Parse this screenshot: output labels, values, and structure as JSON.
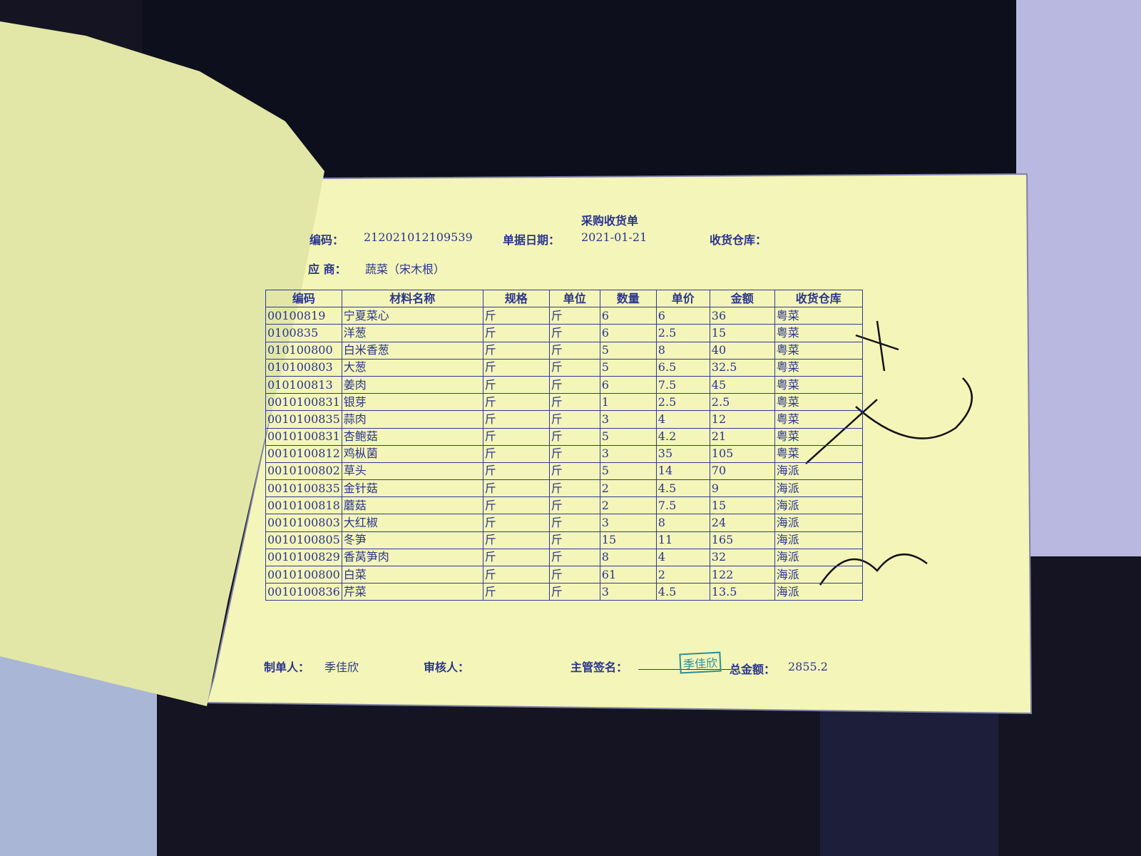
{
  "header": {
    "title": "采购收货单",
    "code_label": "编码：",
    "code": "212021012109539",
    "date_label": "单据日期：",
    "date": "2021-01-21",
    "warehouse_label": "收货仓库：",
    "supplier_label": "应 商：",
    "supplier": "蔬菜（宋木根）"
  },
  "table": {
    "columns": [
      "编码",
      "材料名称",
      "规格",
      "单位",
      "数量",
      "单价",
      "金额",
      "收货仓库"
    ],
    "rows": [
      [
        "00100819",
        "宁夏菜心",
        "斤",
        "斤",
        6,
        6,
        36,
        "粤菜"
      ],
      [
        "0100835",
        "洋葱",
        "斤",
        "斤",
        6,
        2.5,
        15,
        "粤菜"
      ],
      [
        "010100800",
        "白米香葱",
        "斤",
        "斤",
        5,
        8,
        40,
        "粤菜"
      ],
      [
        "010100803",
        "大葱",
        "斤",
        "斤",
        5,
        6.5,
        32.5,
        "粤菜"
      ],
      [
        "010100813",
        "姜肉",
        "斤",
        "斤",
        6,
        7.5,
        45,
        "粤菜"
      ],
      [
        "0010100831",
        "银芽",
        "斤",
        "斤",
        1,
        2.5,
        2.5,
        "粤菜"
      ],
      [
        "0010100835",
        "蒜肉",
        "斤",
        "斤",
        3,
        4,
        12,
        "粤菜"
      ],
      [
        "0010100831",
        "杏鲍菇",
        "斤",
        "斤",
        5,
        4.2,
        21,
        "粤菜"
      ],
      [
        "0010100812",
        "鸡枞菌",
        "斤",
        "斤",
        3,
        35,
        105,
        "粤菜"
      ],
      [
        "0010100802",
        "草头",
        "斤",
        "斤",
        5,
        14,
        70,
        "海派"
      ],
      [
        "0010100835",
        "金针菇",
        "斤",
        "斤",
        2,
        4.5,
        9,
        "海派"
      ],
      [
        "0010100818",
        "蘑菇",
        "斤",
        "斤",
        2,
        7.5,
        15,
        "海派"
      ],
      [
        "0010100803",
        "大红椒",
        "斤",
        "斤",
        3,
        8,
        24,
        "海派"
      ],
      [
        "0010100805",
        "冬笋",
        "斤",
        "斤",
        15,
        11,
        165,
        "海派"
      ],
      [
        "0010100829",
        "香莴笋肉",
        "斤",
        "斤",
        8,
        4,
        32,
        "海派"
      ],
      [
        "0010100800",
        "白菜",
        "斤",
        "斤",
        61,
        2,
        122,
        "海派"
      ],
      [
        "0010100836",
        "芹菜",
        "斤",
        "斤",
        3,
        4.5,
        13.5,
        "海派"
      ]
    ]
  },
  "footer": {
    "maker_label": "制单人：",
    "maker": "季佳欣",
    "reviewer_label": "审核人：",
    "manager_label": "主管签名：",
    "stamp": "季佳欣",
    "total_label": "总金额：",
    "total": 2855.2
  }
}
